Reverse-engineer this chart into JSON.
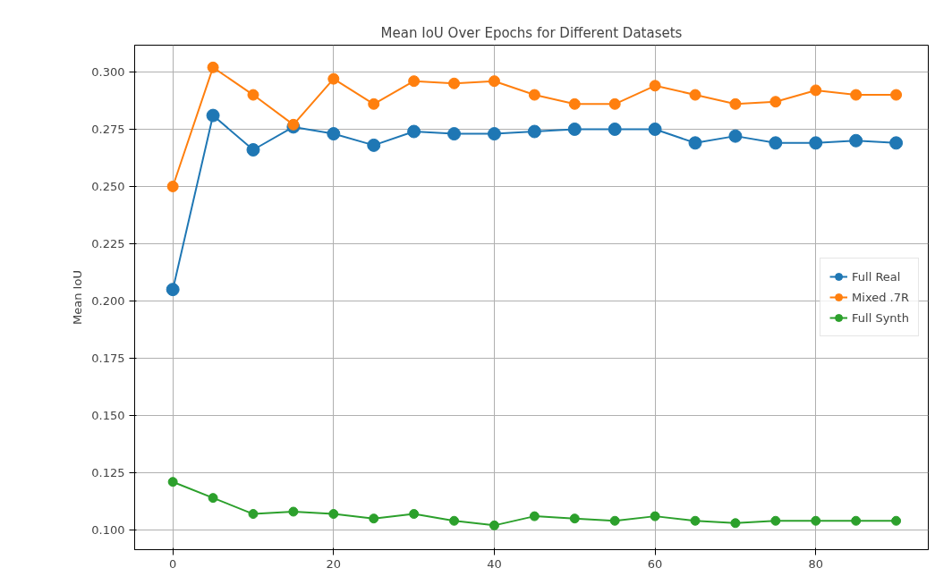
{
  "chart_data": {
    "type": "line",
    "title": "Mean IoU Over Epochs for Different Datasets",
    "ylabel": "Mean IoU",
    "x": [
      0,
      5,
      10,
      15,
      20,
      25,
      30,
      35,
      40,
      45,
      50,
      55,
      60,
      65,
      70,
      75,
      80,
      85,
      90
    ],
    "series": [
      {
        "name": "Full Real",
        "color": "#1f77b4",
        "values": [
          0.205,
          0.281,
          0.266,
          0.276,
          0.273,
          0.268,
          0.274,
          0.273,
          0.273,
          0.274,
          0.275,
          0.275,
          0.275,
          0.269,
          0.272,
          0.269,
          0.269,
          0.27,
          0.269
        ]
      },
      {
        "name": "Mixed .7R",
        "color": "#ff7f0e",
        "values": [
          0.25,
          0.302,
          0.29,
          0.277,
          0.297,
          0.286,
          0.296,
          0.295,
          0.296,
          0.29,
          0.286,
          0.286,
          0.294,
          0.29,
          0.286,
          0.287,
          0.292,
          0.29,
          0.29
        ]
      },
      {
        "name": "Full Synth",
        "color": "#2ca02c",
        "values": [
          0.121,
          0.114,
          0.107,
          0.108,
          0.107,
          0.105,
          0.107,
          0.104,
          0.102,
          0.106,
          0.105,
          0.104,
          0.106,
          0.104,
          0.103,
          0.104,
          0.104,
          0.104,
          0.104
        ]
      }
    ],
    "xlim": [
      -4.75,
      94
    ],
    "xticks": [
      0,
      20,
      40,
      60,
      80
    ],
    "ylim": [
      0.0914,
      0.3117
    ],
    "yticks": [
      {
        "value": 0.1,
        "label": "0.100"
      },
      {
        "value": 0.125,
        "label": "0.125"
      },
      {
        "value": 0.15,
        "label": "0.150"
      },
      {
        "value": 0.175,
        "label": "0.175"
      },
      {
        "value": 0.2,
        "label": "0.200"
      },
      {
        "value": 0.225,
        "label": "0.225"
      },
      {
        "value": 0.25,
        "label": "0.250"
      },
      {
        "value": 0.275,
        "label": "0.275"
      },
      {
        "value": 0.3,
        "label": "0.300"
      }
    ],
    "grid": true,
    "legend": "right",
    "marker": "circle",
    "line_style": "solid"
  }
}
